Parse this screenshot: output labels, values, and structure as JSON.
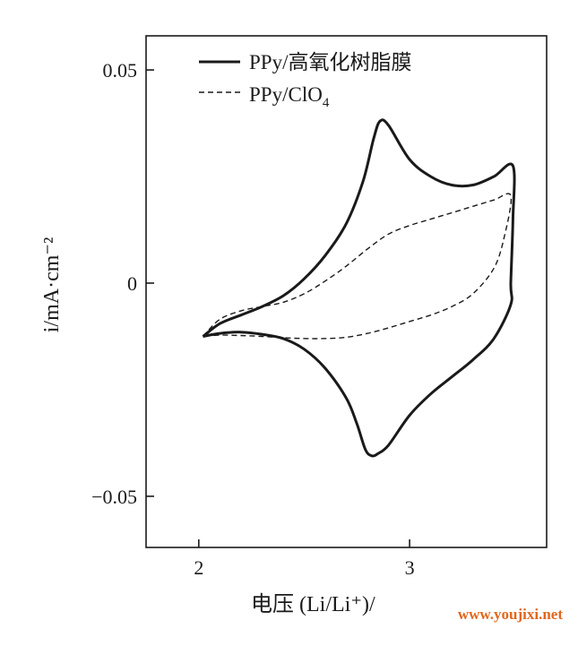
{
  "chart_data": {
    "type": "line",
    "xlabel": "电压 (Li/Li⁺)/",
    "ylabel": "i/mA·cm⁻²",
    "xlim": [
      1.75,
      3.65
    ],
    "ylim": [
      -0.062,
      0.058
    ],
    "x_ticks": [
      {
        "value": 2,
        "label": "2"
      },
      {
        "value": 3,
        "label": "3"
      }
    ],
    "y_ticks": [
      {
        "value": 0.05,
        "label": "0.05"
      },
      {
        "value": 0,
        "label": "0"
      },
      {
        "value": -0.05,
        "label": "−0.05"
      }
    ],
    "grid": false,
    "legend_position": "top-left",
    "series": [
      {
        "name": "PPy/高氧化树脂膜",
        "style": "solid",
        "color": "#1a1a1a",
        "x": [
          2.02,
          2.1,
          2.2,
          2.3,
          2.4,
          2.5,
          2.6,
          2.7,
          2.78,
          2.83,
          2.86,
          2.9,
          3.0,
          3.1,
          3.2,
          3.3,
          3.4,
          3.49,
          3.49,
          3.48,
          3.48,
          3.4,
          3.3,
          3.2,
          3.1,
          3.0,
          2.9,
          2.85,
          2.82,
          2.79,
          2.75,
          2.7,
          2.6,
          2.5,
          2.4,
          2.3,
          2.2,
          2.1,
          2.02
        ],
        "y": [
          -0.0125,
          -0.0095,
          -0.0075,
          -0.0055,
          -0.003,
          0.001,
          0.0065,
          0.014,
          0.024,
          0.034,
          0.038,
          0.037,
          0.029,
          0.025,
          0.023,
          0.023,
          0.025,
          0.0275,
          0.015,
          0.0,
          -0.005,
          -0.013,
          -0.018,
          -0.022,
          -0.026,
          -0.031,
          -0.038,
          -0.04,
          -0.0405,
          -0.039,
          -0.033,
          -0.027,
          -0.02,
          -0.0155,
          -0.013,
          -0.012,
          -0.0115,
          -0.0118,
          -0.0125
        ]
      },
      {
        "name": "PPy/ClO",
        "name_subscript": "4",
        "style": "dashed",
        "color": "#1a1a1a",
        "x": [
          2.02,
          2.1,
          2.2,
          2.3,
          2.4,
          2.5,
          2.6,
          2.7,
          2.8,
          2.9,
          3.0,
          3.1,
          3.2,
          3.3,
          3.4,
          3.48,
          3.45,
          3.4,
          3.3,
          3.2,
          3.1,
          3.0,
          2.9,
          2.8,
          2.7,
          2.6,
          2.5,
          2.4,
          2.3,
          2.2,
          2.1,
          2.02
        ],
        "y": [
          -0.0125,
          -0.0085,
          -0.0065,
          -0.0055,
          -0.0045,
          -0.0025,
          0.0005,
          0.004,
          0.008,
          0.0115,
          0.0135,
          0.015,
          0.0165,
          0.018,
          0.0195,
          0.0205,
          0.011,
          0.0035,
          -0.0025,
          -0.0055,
          -0.0075,
          -0.009,
          -0.0105,
          -0.0118,
          -0.0127,
          -0.013,
          -0.013,
          -0.0128,
          -0.0125,
          -0.0123,
          -0.0122,
          -0.0125
        ]
      }
    ]
  },
  "watermark": {
    "text": "www.youjixi.net",
    "color": "#e2671c"
  }
}
